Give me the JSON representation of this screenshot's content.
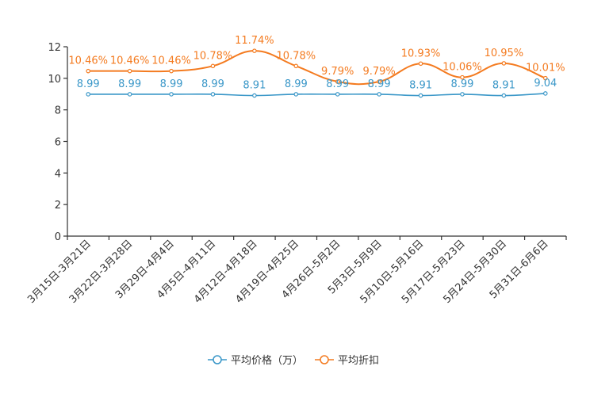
{
  "chart_data": {
    "type": "line",
    "categories": [
      "3月15日-3月21日",
      "3月22日-3月28日",
      "3月29日-4月4日",
      "4月5日-4月11日",
      "4月12日-4月18日",
      "4月19日-4月25日",
      "4月26日-5月2日",
      "5月3日-5月9日",
      "5月10日-5月16日",
      "5月17日-5月23日",
      "5月24日-5月30日",
      "5月31日-6月6日"
    ],
    "series": [
      {
        "name": "平均价格（万）",
        "color": "#3a97c8",
        "values": [
          8.99,
          8.99,
          8.99,
          8.99,
          8.91,
          8.99,
          8.99,
          8.99,
          8.91,
          8.99,
          8.91,
          9.04
        ],
        "labels": [
          "8.99",
          "8.99",
          "8.99",
          "8.99",
          "8.91",
          "8.99",
          "8.99",
          "8.99",
          "8.91",
          "8.99",
          "8.91",
          "9.04"
        ]
      },
      {
        "name": "平均折扣",
        "color": "#f47b20",
        "values": [
          10.46,
          10.46,
          10.46,
          10.78,
          11.74,
          10.78,
          9.79,
          9.79,
          10.93,
          10.06,
          10.95,
          10.01
        ],
        "labels": [
          "10.46%",
          "10.46%",
          "10.46%",
          "10.78%",
          "11.74%",
          "10.78%",
          "9.79%",
          "9.79%",
          "10.93%",
          "10.06%",
          "10.95%",
          "10.01%"
        ]
      }
    ],
    "ylim": [
      0,
      12
    ],
    "yticks": [
      "0",
      "2",
      "4",
      "6",
      "8",
      "10",
      "12"
    ],
    "title": "",
    "xlabel": "",
    "ylabel": "",
    "legend_position": "bottom"
  }
}
